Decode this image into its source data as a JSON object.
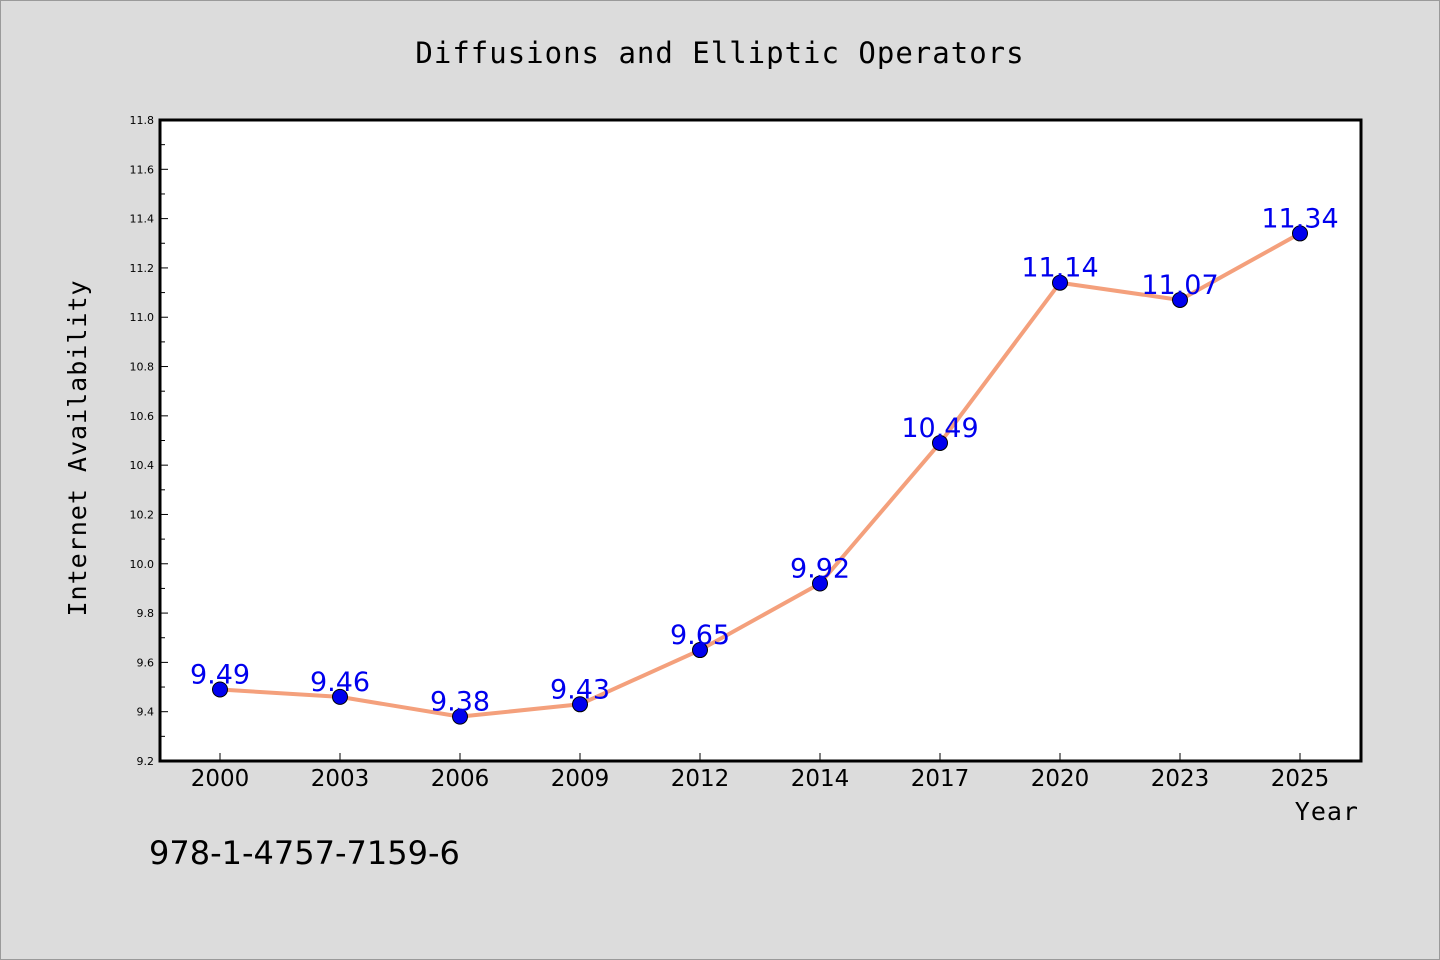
{
  "chart_data": {
    "type": "line",
    "title": "Diffusions and Elliptic Operators",
    "xlabel": "Year",
    "ylabel": "Internet Availability",
    "categories": [
      "2000",
      "2003",
      "2006",
      "2009",
      "2012",
      "2014",
      "2017",
      "2020",
      "2023",
      "2025"
    ],
    "series": [
      {
        "values": [
          9.49,
          9.46,
          9.38,
          9.43,
          9.65,
          9.92,
          10.49,
          11.14,
          11.07,
          11.34
        ],
        "line_color": "#f4a07c",
        "marker_color": "#0000ee",
        "label_color": "#0000ee"
      }
    ],
    "data_labels": [
      "9.49",
      "9.46",
      "9.38",
      "9.43",
      "9.65",
      "9.92",
      "10.49",
      "11.14",
      "11.07",
      "11.34"
    ],
    "ylim": [
      9.2,
      11.8
    ],
    "yticks": [
      "9.2",
      "9.4",
      "9.6",
      "9.8",
      "10.0",
      "10.2",
      "10.4",
      "10.6",
      "10.8",
      "11.0",
      "11.2",
      "11.4",
      "11.6",
      "11.8"
    ],
    "grid": false,
    "legend": "none"
  },
  "footer": {
    "isbn": "978-1-4757-7159-6"
  },
  "colors": {
    "background": "#dcdcdc",
    "plot_area": "#ffffff",
    "line": "#f4a07c",
    "marker": "#0000ee"
  }
}
